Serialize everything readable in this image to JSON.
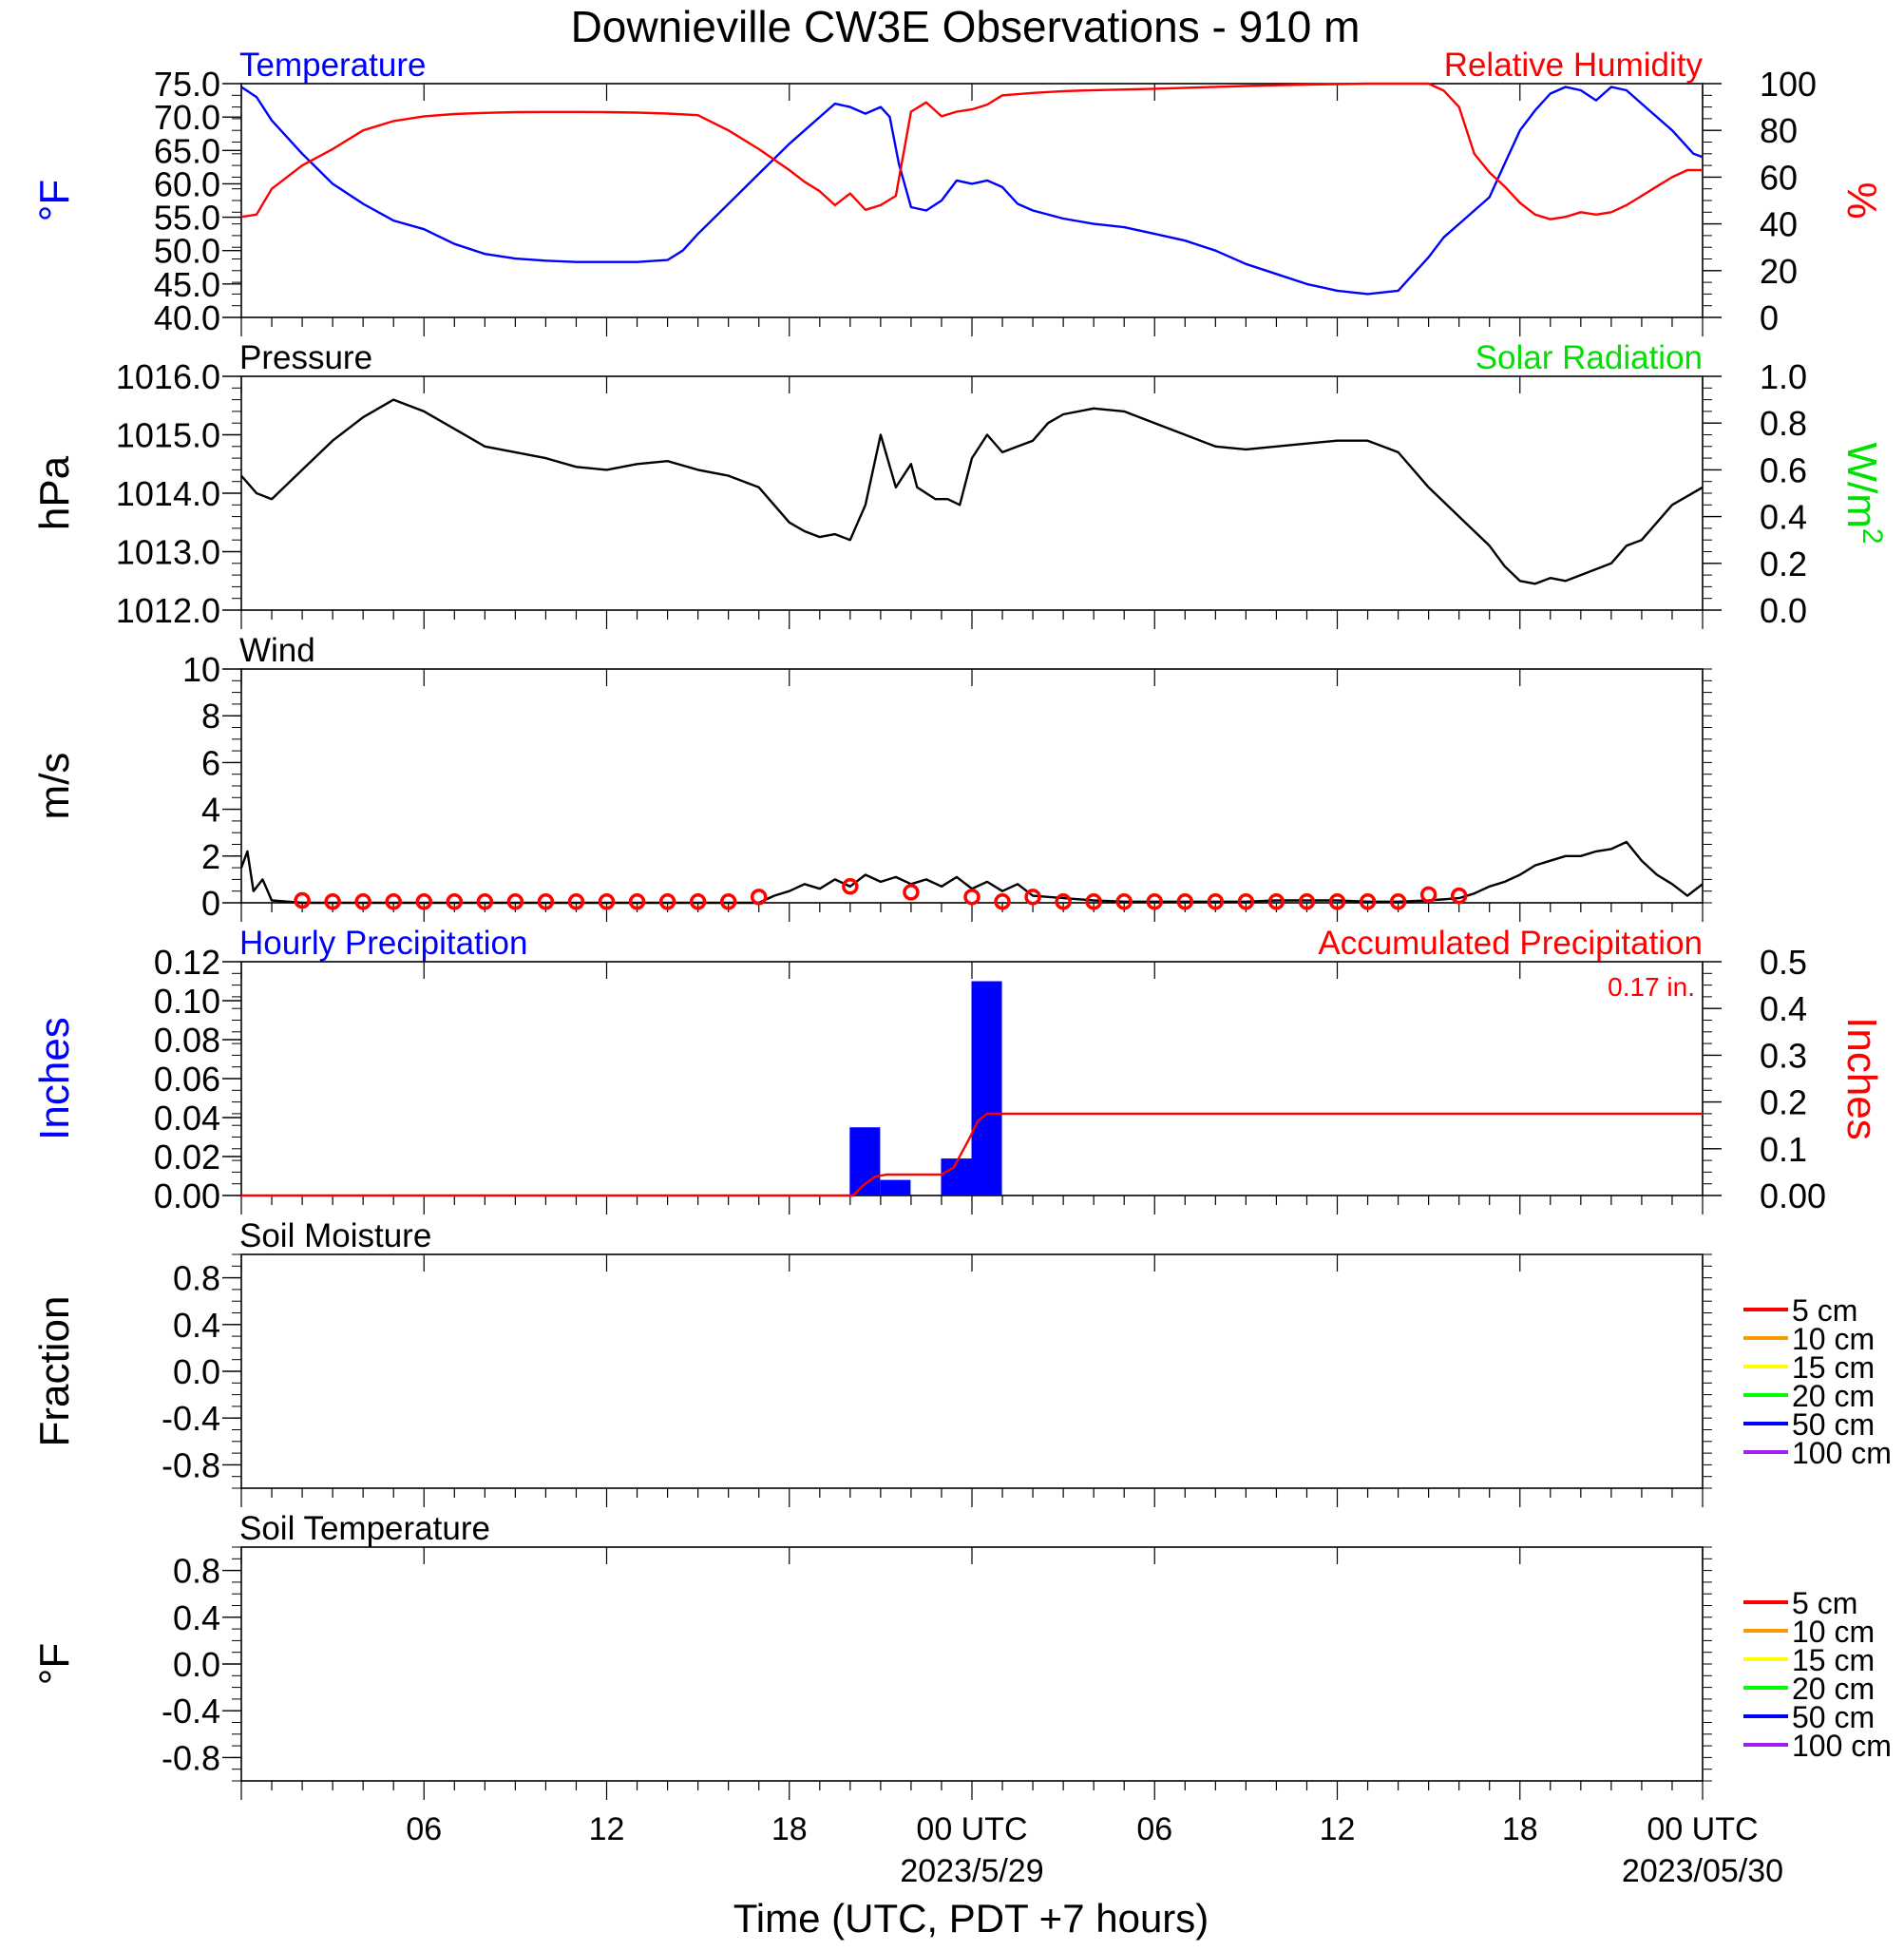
{
  "title": "Downieville CW3E Observations - 910 m",
  "colors": {
    "blue": "#0000ff",
    "red": "#ff0000",
    "green": "#00e000",
    "black": "#000000"
  },
  "x_axis": {
    "title": "Time (UTC, PDT +7 hours)",
    "start_hour": 0,
    "end_hour": 48,
    "tick_labels": [
      {
        "hour": 6,
        "label": "06"
      },
      {
        "hour": 12,
        "label": "12"
      },
      {
        "hour": 18,
        "label": "18"
      },
      {
        "hour": 24,
        "label": "00 UTC",
        "sublabel": "2023/5/29"
      },
      {
        "hour": 30,
        "label": "06"
      },
      {
        "hour": 36,
        "label": "12"
      },
      {
        "hour": 42,
        "label": "18"
      },
      {
        "hour": 48,
        "label": "00 UTC",
        "sublabel": "2023/05/30"
      }
    ]
  },
  "chart_data": [
    {
      "type": "line",
      "panel": "temperature_humidity",
      "title_left": "Temperature",
      "title_right": "Relative Humidity",
      "ylabel_left": "°F",
      "ylabel_right": "%",
      "ylim_left": [
        40,
        75
      ],
      "yticks_left": [
        "75.0",
        "70.0",
        "65.0",
        "60.0",
        "55.0",
        "50.0",
        "45.0",
        "40.0"
      ],
      "ylim_right": [
        0,
        100
      ],
      "yticks_right": [
        "100",
        "80",
        "60",
        "40",
        "20",
        "0"
      ],
      "series": [
        {
          "name": "Temperature",
          "axis": "left",
          "color": "#0000ff",
          "x": [
            0,
            0.5,
            1,
            2,
            3,
            4,
            5,
            6,
            7,
            8,
            9,
            10,
            11,
            12,
            13,
            14,
            14.5,
            15,
            16,
            17,
            18,
            19,
            19.5,
            20,
            20.5,
            21,
            21.3,
            21.6,
            22,
            22.5,
            23,
            23.5,
            24,
            24.5,
            25,
            25.5,
            26,
            27,
            28,
            29,
            30,
            31,
            32,
            33,
            34,
            35,
            36,
            37,
            38,
            39,
            39.5,
            40,
            41,
            41.5,
            42,
            42.5,
            43,
            43.5,
            44,
            44.5,
            45,
            45.5,
            46,
            47,
            47.7,
            48
          ],
          "y": [
            74.5,
            73,
            69.5,
            64.5,
            60,
            57,
            54.5,
            53.2,
            51,
            49.5,
            48.8,
            48.5,
            48.3,
            48.3,
            48.3,
            48.6,
            50,
            52.5,
            57,
            61.5,
            66,
            70,
            72,
            71.5,
            70.5,
            71.5,
            70,
            63,
            56.5,
            56,
            57.5,
            60.5,
            60,
            60.5,
            59.5,
            57,
            56,
            54.8,
            54,
            53.5,
            52.5,
            51.5,
            50,
            48,
            46.5,
            45,
            44,
            43.5,
            44,
            49,
            52,
            54,
            58,
            63,
            68,
            71,
            73.5,
            74.5,
            74,
            72.5,
            74.5,
            74,
            72,
            68,
            64.5,
            64
          ]
        },
        {
          "name": "Relative Humidity",
          "axis": "right",
          "color": "#ff0000",
          "x": [
            0,
            0.5,
            1,
            2,
            3,
            4,
            5,
            6,
            7,
            8,
            9,
            10,
            11,
            12,
            13,
            14,
            15,
            16,
            17,
            18,
            18.5,
            19,
            19.5,
            20,
            20.5,
            21,
            21.5,
            22,
            22.5,
            23,
            23.5,
            24,
            24.5,
            25,
            26,
            27,
            28,
            29,
            30,
            31,
            32,
            33,
            34,
            35,
            36,
            37,
            38,
            39,
            39.5,
            40,
            40.5,
            41,
            41.5,
            42,
            42.5,
            43,
            43.5,
            44,
            44.5,
            45,
            45.5,
            46,
            46.5,
            47,
            47.5,
            48
          ],
          "y": [
            43,
            44,
            55,
            65,
            72,
            80,
            84,
            86,
            87,
            87.5,
            87.8,
            87.9,
            87.9,
            87.8,
            87.6,
            87.2,
            86.5,
            80,
            72,
            63,
            58,
            54,
            48,
            53,
            46,
            48,
            52,
            88,
            92,
            86,
            88,
            89,
            91,
            95,
            96,
            96.8,
            97.2,
            97.5,
            97.8,
            98.2,
            98.6,
            99,
            99.3,
            99.6,
            99.8,
            100,
            100,
            100,
            97,
            90,
            70,
            62,
            56,
            49,
            44,
            42,
            43,
            45,
            44,
            45,
            48,
            52,
            56,
            60,
            63,
            63
          ]
        }
      ]
    },
    {
      "type": "line",
      "panel": "pressure",
      "title_left": "Pressure",
      "title_right": "Solar Radiation",
      "ylabel_left": "hPa",
      "ylabel_right": "W/m",
      "ylabel_right_sup": "2",
      "ylim_left": [
        1012,
        1016
      ],
      "yticks_left": [
        "1016.0",
        "1015.0",
        "1014.0",
        "1013.0",
        "1012.0"
      ],
      "ylim_right": [
        0,
        1
      ],
      "yticks_right": [
        "1.0",
        "0.8",
        "0.6",
        "0.4",
        "0.2",
        "0.0"
      ],
      "series": [
        {
          "name": "Pressure",
          "axis": "left",
          "color": "#000000",
          "x": [
            0,
            0.5,
            1,
            2,
            3,
            4,
            5,
            6,
            7,
            8,
            9,
            10,
            11,
            12,
            13,
            14,
            15,
            16,
            17,
            18,
            18.5,
            19,
            19.5,
            20,
            20.5,
            21,
            21.5,
            22,
            22.2,
            22.5,
            22.8,
            23.2,
            23.6,
            24,
            24.5,
            25,
            25.5,
            26,
            26.5,
            27,
            28,
            29,
            30,
            31,
            32,
            33,
            34,
            35,
            36,
            37,
            38,
            39,
            40,
            41,
            41.5,
            42,
            42.5,
            43,
            43.5,
            44,
            45,
            45.5,
            46,
            46.5,
            47,
            47.5,
            48
          ],
          "y": [
            1014.3,
            1014.0,
            1013.9,
            1014.4,
            1014.9,
            1015.3,
            1015.6,
            1015.4,
            1015.1,
            1014.8,
            1014.7,
            1014.6,
            1014.45,
            1014.4,
            1014.5,
            1014.55,
            1014.4,
            1014.3,
            1014.1,
            1013.5,
            1013.35,
            1013.25,
            1013.3,
            1013.2,
            1013.8,
            1015.0,
            1014.1,
            1014.5,
            1014.1,
            1014.0,
            1013.9,
            1013.9,
            1013.8,
            1014.6,
            1015.0,
            1014.7,
            1014.8,
            1014.9,
            1015.2,
            1015.35,
            1015.45,
            1015.4,
            1015.2,
            1015.0,
            1014.8,
            1014.75,
            1014.8,
            1014.85,
            1014.9,
            1014.9,
            1014.7,
            1014.1,
            1013.6,
            1013.1,
            1012.75,
            1012.5,
            1012.45,
            1012.55,
            1012.5,
            1012.6,
            1012.8,
            1013.1,
            1013.2,
            1013.5,
            1013.8,
            1013.95,
            1014.1
          ]
        }
      ]
    },
    {
      "type": "line",
      "panel": "wind",
      "title_left": "Wind",
      "ylabel_left": "m/s",
      "ylim_left": [
        0,
        10
      ],
      "yticks_left": [
        "10",
        "8",
        "6",
        "4",
        "2",
        "0"
      ],
      "series": [
        {
          "name": "Wind speed",
          "axis": "left",
          "color": "#000000",
          "x": [
            0,
            0.2,
            0.4,
            0.7,
            1,
            2,
            4,
            6,
            8,
            10,
            12,
            14,
            16,
            17,
            17.5,
            18,
            18.5,
            19,
            19.5,
            20,
            20.5,
            21,
            21.5,
            22,
            22.5,
            23,
            23.5,
            24,
            24.5,
            25,
            25.5,
            26,
            27,
            28,
            29,
            30,
            31,
            32,
            33,
            34,
            35,
            36,
            37,
            38,
            39,
            40,
            40.5,
            41,
            41.5,
            42,
            42.5,
            43,
            43.5,
            44,
            44.5,
            45,
            45.5,
            46,
            46.5,
            47,
            47.5,
            48
          ],
          "y": [
            1.5,
            2.2,
            0.5,
            1.0,
            0.1,
            0,
            0,
            0,
            0,
            0,
            0,
            0,
            0,
            0,
            0.3,
            0.5,
            0.8,
            0.6,
            1.0,
            0.7,
            1.2,
            0.9,
            1.1,
            0.8,
            1.0,
            0.7,
            1.1,
            0.6,
            0.9,
            0.5,
            0.8,
            0.3,
            0.2,
            0.1,
            0.05,
            0.05,
            0.05,
            0.05,
            0.05,
            0.1,
            0.1,
            0.1,
            0.05,
            0.05,
            0.1,
            0.2,
            0.4,
            0.7,
            0.9,
            1.2,
            1.6,
            1.8,
            2.0,
            2.0,
            2.2,
            2.3,
            2.6,
            1.8,
            1.2,
            0.8,
            0.3,
            0.8
          ]
        },
        {
          "name": "Wind direction markers",
          "axis": "left",
          "color": "#ff0000",
          "x": [
            2,
            3,
            4,
            5,
            6,
            7,
            8,
            9,
            10,
            11,
            12,
            13,
            14,
            15,
            16,
            17,
            20,
            22,
            24,
            25,
            26,
            27,
            28,
            29,
            30,
            31,
            32,
            33,
            34,
            35,
            36,
            37,
            38,
            39,
            40
          ],
          "y": [
            0.1,
            0.05,
            0.05,
            0.05,
            0.05,
            0.05,
            0.05,
            0.05,
            0.05,
            0.05,
            0.05,
            0.05,
            0.05,
            0.05,
            0.05,
            0.25,
            0.7,
            0.45,
            0.25,
            0.05,
            0.25,
            0.05,
            0.05,
            0.05,
            0.05,
            0.05,
            0.05,
            0.05,
            0.05,
            0.05,
            0.05,
            0.05,
            0.05,
            0.35,
            0.3
          ]
        }
      ]
    },
    {
      "type": "bar",
      "panel": "precipitation",
      "title_left": "Hourly Precipitation",
      "title_right": "Accumulated Precipitation",
      "annotation": "0.17 in.",
      "ylabel_left": "Inches",
      "ylabel_right": "Inches",
      "ylim_left": [
        0,
        0.12
      ],
      "yticks_left": [
        "0.12",
        "0.10",
        "0.08",
        "0.06",
        "0.04",
        "0.02",
        "0.00"
      ],
      "ylim_right": [
        0,
        0.5
      ],
      "yticks_right": [
        "0.5",
        "0.4",
        "0.3",
        "0.2",
        "0.1",
        "0.00"
      ],
      "bars": [
        {
          "x": 20,
          "value": 0.035
        },
        {
          "x": 21,
          "value": 0.008
        },
        {
          "x": 23,
          "value": 0.019
        },
        {
          "x": 24,
          "value": 0.11
        }
      ],
      "series": [
        {
          "name": "Accumulated Precipitation",
          "axis": "right",
          "color": "#ff0000",
          "x": [
            0,
            20.1,
            20.4,
            20.8,
            21.2,
            23,
            23.4,
            23.9,
            24.2,
            24.5,
            48
          ],
          "y": [
            0,
            0,
            0.02,
            0.04,
            0.045,
            0.045,
            0.06,
            0.12,
            0.16,
            0.175,
            0.175
          ]
        }
      ]
    },
    {
      "type": "line",
      "panel": "soil_moisture",
      "title_left": "Soil Moisture",
      "ylabel_left": "Fraction",
      "ylim_left": [
        -1,
        1
      ],
      "yticks_left": [
        "0.8",
        "0.4",
        "0.0",
        "-0.4",
        "-0.8"
      ],
      "series": [
        {
          "name": "5 cm",
          "color": "#ff0000"
        },
        {
          "name": "10 cm",
          "color": "#ff9900"
        },
        {
          "name": "15 cm",
          "color": "#ffff00"
        },
        {
          "name": "20 cm",
          "color": "#00ff00"
        },
        {
          "name": "50 cm",
          "color": "#0000ff"
        },
        {
          "name": "100 cm",
          "color": "#a020f0"
        }
      ]
    },
    {
      "type": "line",
      "panel": "soil_temperature",
      "title_left": "Soil Temperature",
      "ylabel_left": "°F",
      "ylim_left": [
        -1,
        1
      ],
      "yticks_left": [
        "0.8",
        "0.4",
        "0.0",
        "-0.4",
        "-0.8"
      ],
      "series": [
        {
          "name": "5 cm",
          "color": "#ff0000"
        },
        {
          "name": "10 cm",
          "color": "#ff9900"
        },
        {
          "name": "15 cm",
          "color": "#ffff00"
        },
        {
          "name": "20 cm",
          "color": "#00ff00"
        },
        {
          "name": "50 cm",
          "color": "#0000ff"
        },
        {
          "name": "100 cm",
          "color": "#a020f0"
        }
      ]
    }
  ]
}
